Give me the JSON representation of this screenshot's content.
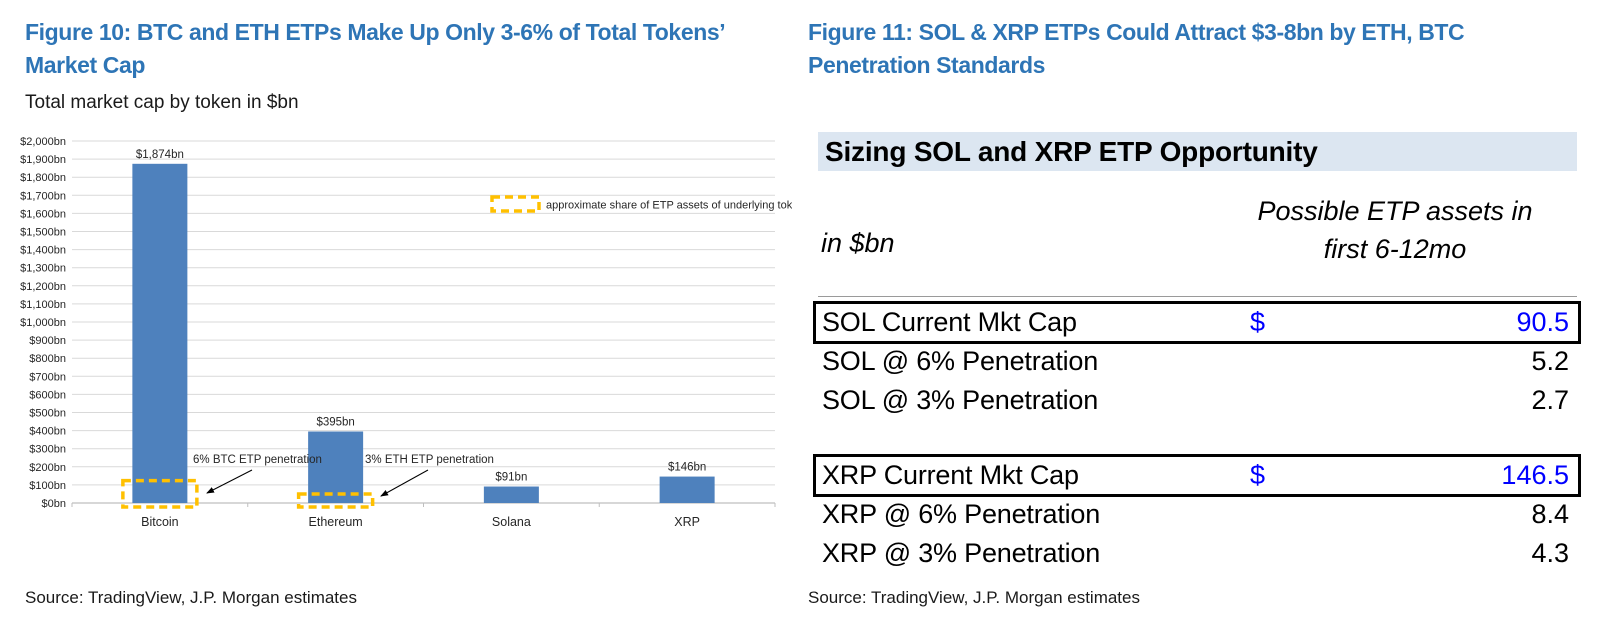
{
  "figure10": {
    "title_line1": "Figure 10: BTC and ETH ETPs Make Up Only 3-6% of Total Tokens’",
    "title_line2": "Market Cap",
    "subtitle": "Total market cap by token in $bn",
    "source": "Source: TradingView, J.P. Morgan estimates"
  },
  "figure11": {
    "title_line1": "Figure 11: SOL & XRP ETPs Could Attract $3-8bn by ETH, BTC",
    "title_line2": "Penetration Standards",
    "source": "Source: TradingView, J.P. Morgan estimates"
  },
  "chart_data": {
    "type": "bar",
    "categories": [
      "Bitcoin",
      "Ethereum",
      "Solana",
      "XRP"
    ],
    "values": [
      1874,
      395,
      91,
      146
    ],
    "bar_labels": [
      "$1,874bn",
      "$395bn",
      "$91bn",
      "$146bn"
    ],
    "title": "Total market cap by token in $bn",
    "xlabel": "",
    "ylabel": "",
    "ylim": [
      0,
      2000
    ],
    "ytick_step": 100,
    "ytick_prefix": "$",
    "ytick_suffix": "bn",
    "grid": true,
    "bar_color": "#4E81BD",
    "highlight_color": "#FFC000",
    "gridline_color": "#D9D9D9",
    "axis_color": "#BFBFBF",
    "legend": "approximate share of ETP assets of underlying token",
    "etp_share_boxes": [
      {
        "category": "Bitcoin",
        "pct": 6
      },
      {
        "category": "Ethereum",
        "pct": 3
      }
    ],
    "annotations": [
      {
        "text": "6% BTC ETP penetration",
        "target_category": "Bitcoin"
      },
      {
        "text": "3% ETH ETP penetration",
        "target_category": "Ethereum"
      }
    ]
  },
  "table": {
    "title": "Sizing SOL and XRP ETP Opportunity",
    "unit_label": "in $bn",
    "col_header_line1": "Possible ETP assets in",
    "col_header_line2": "first 6-12mo",
    "value_color": "#0000FF",
    "sections": [
      {
        "rows": [
          {
            "label": "SOL Current Mkt Cap",
            "currency": "$",
            "value": "90.5",
            "boxed": true,
            "blue": true
          },
          {
            "label": "SOL @ 6% Penetration",
            "currency": "",
            "value": "5.2",
            "boxed": false,
            "blue": false
          },
          {
            "label": "SOL @ 3% Penetration",
            "currency": "",
            "value": "2.7",
            "boxed": false,
            "blue": false
          }
        ]
      },
      {
        "rows": [
          {
            "label": "XRP Current Mkt Cap",
            "currency": "$",
            "value": "146.5",
            "boxed": true,
            "blue": true
          },
          {
            "label": "XRP @ 6% Penetration",
            "currency": "",
            "value": "8.4",
            "boxed": false,
            "blue": false
          },
          {
            "label": "XRP @ 3% Penetration",
            "currency": "",
            "value": "4.3",
            "boxed": false,
            "blue": false
          }
        ]
      }
    ]
  }
}
